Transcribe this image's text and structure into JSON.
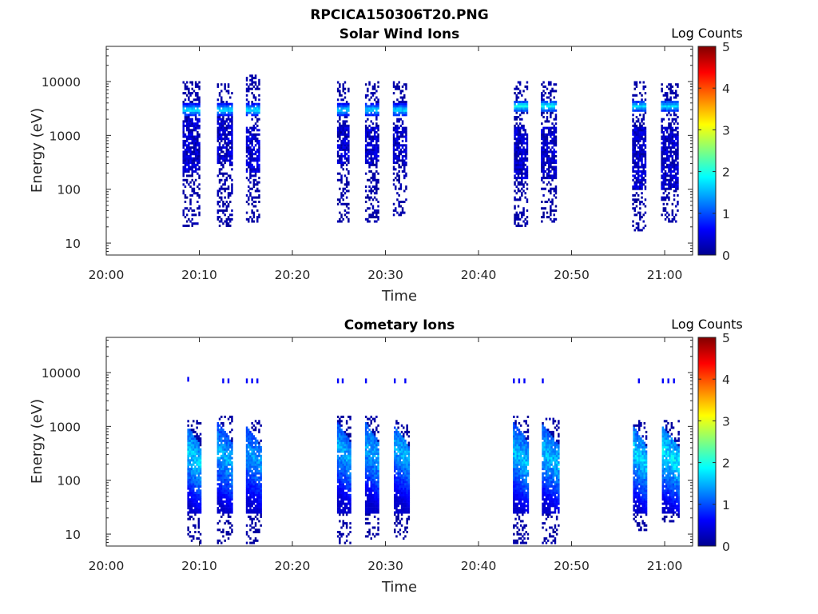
{
  "chart_data": [
    {
      "type": "heatmap",
      "figure_title": "RPCICA150306T20.PNG",
      "title": "Solar Wind Ions",
      "xlabel": "Time",
      "ylabel": "Energy (eV)",
      "x_ticks": [
        "20:00",
        "20:10",
        "20:20",
        "20:30",
        "20:40",
        "20:50",
        "21:00"
      ],
      "x_tick_minutes": [
        0,
        10,
        20,
        30,
        40,
        50,
        60
      ],
      "xlim_minutes": [
        0,
        63
      ],
      "y_scale": "log",
      "ylim": [
        6,
        45000
      ],
      "y_ticks": [
        "10",
        "100",
        "1000",
        "10000"
      ],
      "y_tick_values": [
        10,
        100,
        1000,
        10000
      ],
      "colorbar": {
        "label": "Log Counts",
        "ticks": [
          "0",
          "1",
          "2",
          "3",
          "4",
          "5"
        ],
        "range": [
          0,
          5
        ],
        "colormap": "jet"
      },
      "scans": [
        {
          "t_start": 8.2,
          "t_end": 10.1,
          "e_min": 25,
          "e_max": 8000,
          "peak_energy": 3000,
          "peak_level": 1.6,
          "core_min": 200,
          "core_max": 2000,
          "core_level": 0.5
        },
        {
          "t_start": 11.9,
          "t_end": 13.6,
          "e_min": 25,
          "e_max": 7000,
          "peak_energy": 3000,
          "peak_level": 1.5,
          "core_min": 300,
          "core_max": 2000,
          "core_level": 0.5
        },
        {
          "t_start": 15.0,
          "t_end": 16.6,
          "e_min": 30,
          "e_max": 10000,
          "peak_energy": 3000,
          "peak_level": 1.6,
          "core_min": 200,
          "core_max": 1500,
          "core_level": 0.6
        },
        {
          "t_start": 24.8,
          "t_end": 26.1,
          "e_min": 30,
          "e_max": 8000,
          "peak_energy": 3000,
          "peak_level": 1.5,
          "core_min": 300,
          "core_max": 1500,
          "core_level": 0.5
        },
        {
          "t_start": 27.8,
          "t_end": 29.3,
          "e_min": 30,
          "e_max": 8000,
          "peak_energy": 3000,
          "peak_level": 1.5,
          "core_min": 300,
          "core_max": 1500,
          "core_level": 0.5
        },
        {
          "t_start": 30.8,
          "t_end": 32.4,
          "e_min": 40,
          "e_max": 8000,
          "peak_energy": 3000,
          "peak_level": 1.5,
          "core_min": 300,
          "core_max": 1500,
          "core_level": 0.5
        },
        {
          "t_start": 43.8,
          "t_end": 45.3,
          "e_min": 25,
          "e_max": 8000,
          "peak_energy": 3500,
          "peak_level": 1.7,
          "core_min": 150,
          "core_max": 1500,
          "core_level": 0.5
        },
        {
          "t_start": 46.7,
          "t_end": 48.4,
          "e_min": 30,
          "e_max": 8000,
          "peak_energy": 3500,
          "peak_level": 1.7,
          "core_min": 150,
          "core_max": 1500,
          "core_level": 0.5
        },
        {
          "t_start": 56.5,
          "t_end": 58.0,
          "e_min": 20,
          "e_max": 8000,
          "peak_energy": 3500,
          "peak_level": 1.5,
          "core_min": 100,
          "core_max": 1500,
          "core_level": 0.5
        },
        {
          "t_start": 59.6,
          "t_end": 61.4,
          "e_min": 30,
          "e_max": 7000,
          "peak_energy": 3500,
          "peak_level": 1.5,
          "core_min": 100,
          "core_max": 1500,
          "core_level": 0.5
        }
      ]
    },
    {
      "type": "heatmap",
      "title": "Cometary Ions",
      "xlabel": "Time",
      "ylabel": "Energy (eV)",
      "x_ticks": [
        "20:00",
        "20:10",
        "20:20",
        "20:30",
        "20:40",
        "20:50",
        "21:00"
      ],
      "x_tick_minutes": [
        0,
        10,
        20,
        30,
        40,
        50,
        60
      ],
      "xlim_minutes": [
        0,
        63
      ],
      "y_scale": "log",
      "ylim": [
        6,
        45000
      ],
      "y_ticks": [
        "10",
        "100",
        "1000",
        "10000"
      ],
      "y_tick_values": [
        10,
        100,
        1000,
        10000
      ],
      "colorbar": {
        "label": "Log Counts",
        "ticks": [
          "0",
          "1",
          "2",
          "3",
          "4",
          "5"
        ],
        "range": [
          0,
          5
        ],
        "colormap": "jet"
      },
      "scans": [
        {
          "t_start": 8.7,
          "t_end": 10.3,
          "e_min": 8,
          "e_max": 1000,
          "peak_energy": 200,
          "peak_level": 1.7,
          "high_band_energy": 7500
        },
        {
          "t_start": 11.9,
          "t_end": 13.6,
          "e_min": 8,
          "e_max": 1200,
          "peak_energy": 200,
          "peak_level": 1.5,
          "high_band_energy": 7000
        },
        {
          "t_start": 15.0,
          "t_end": 16.7,
          "e_min": 8,
          "e_max": 1000,
          "peak_energy": 200,
          "peak_level": 1.4,
          "high_band_energy": 7000
        },
        {
          "t_start": 24.8,
          "t_end": 26.3,
          "e_min": 8,
          "e_max": 1200,
          "peak_energy": 250,
          "peak_level": 1.5,
          "high_band_energy": 7000
        },
        {
          "t_start": 27.8,
          "t_end": 29.4,
          "e_min": 10,
          "e_max": 1200,
          "peak_energy": 250,
          "peak_level": 1.5,
          "high_band_energy": 7000
        },
        {
          "t_start": 30.9,
          "t_end": 32.6,
          "e_min": 10,
          "e_max": 1000,
          "peak_energy": 250,
          "peak_level": 1.5,
          "high_band_energy": 7000
        },
        {
          "t_start": 43.7,
          "t_end": 45.4,
          "e_min": 8,
          "e_max": 1200,
          "peak_energy": 200,
          "peak_level": 1.6,
          "high_band_energy": 7000
        },
        {
          "t_start": 46.8,
          "t_end": 48.6,
          "e_min": 8,
          "e_max": 1100,
          "peak_energy": 200,
          "peak_level": 1.6,
          "high_band_energy": 7000
        },
        {
          "t_start": 56.6,
          "t_end": 58.2,
          "e_min": 15,
          "e_max": 1000,
          "peak_energy": 200,
          "peak_level": 1.7,
          "high_band_energy": 7000
        },
        {
          "t_start": 59.7,
          "t_end": 61.5,
          "e_min": 20,
          "e_max": 1000,
          "peak_energy": 200,
          "peak_level": 1.8,
          "high_band_energy": 7000
        }
      ]
    }
  ]
}
